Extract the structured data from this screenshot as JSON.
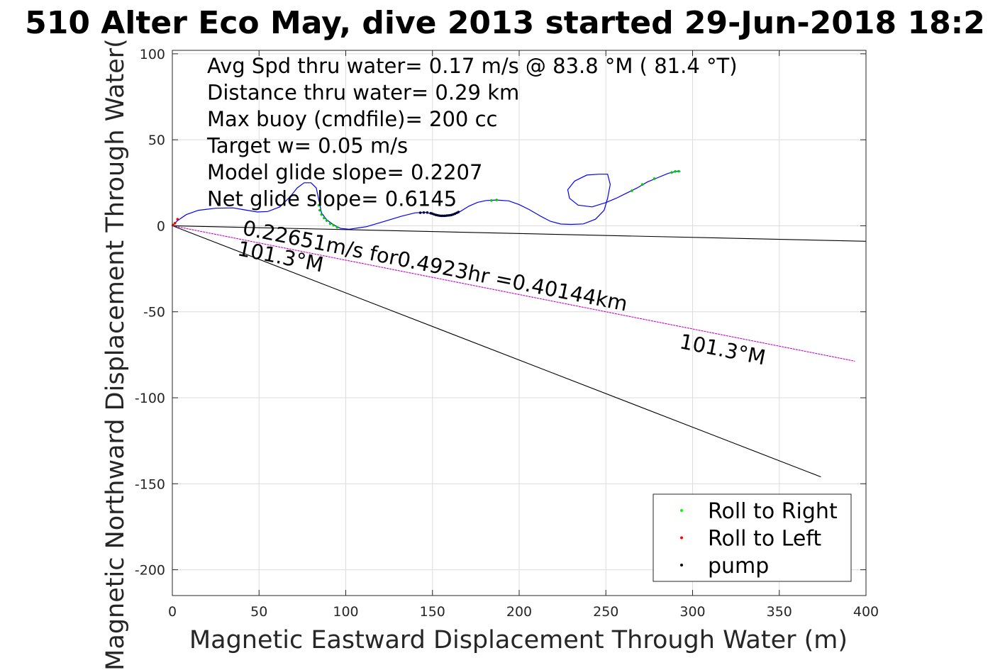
{
  "chart_data": {
    "type": "line",
    "title": "510 Alter Eco May, dive 2013 started 29-Jun-2018 18:2",
    "xlabel": "Magnetic Eastward Displacement Through Water (m)",
    "ylabel": "Magnetic Northward Displacement Through Water(",
    "xlim": [
      0,
      400
    ],
    "ylim": [
      -215,
      102
    ],
    "xticks": [
      0,
      50,
      100,
      150,
      200,
      250,
      300,
      350,
      400
    ],
    "yticks": [
      100,
      50,
      0,
      -50,
      -100,
      -150,
      -200
    ],
    "grid": true,
    "legend_position": "bottom-right",
    "legend": [
      {
        "label": "Roll to Right",
        "color": "#00ff00"
      },
      {
        "label": "Roll to Left",
        "color": "#ff0000"
      },
      {
        "label": "pump",
        "color": "#000000"
      }
    ],
    "info_lines": [
      "Avg Spd thru water=  0.17 m/s @  83.8 °M ( 81.4 °T)",
      "Distance thru water=  0.29 km",
      "Max buoy (cmdfile)= 200 cc",
      "Target w= 0.05 m/s",
      "Model glide slope= 0.2207",
      "Net glide slope= 0.6145"
    ],
    "annotations": [
      {
        "text": "0.22651m/s for0.4923hr =0.40144km",
        "x": 40,
        "y": -5,
        "angle_deg": 11.3
      },
      {
        "text": "101.3°M",
        "x": 37,
        "y": -17,
        "angle_deg": 11.3
      },
      {
        "text": "101.3°M",
        "x": 292,
        "y": -71,
        "angle_deg": 11.3
      }
    ],
    "series": [
      {
        "kind": "track",
        "color": "#0000ff",
        "points": [
          [
            0,
            0
          ],
          [
            3,
            3
          ],
          [
            8,
            6.5
          ],
          [
            15,
            9
          ],
          [
            25,
            10.2
          ],
          [
            35,
            10.4
          ],
          [
            42,
            9.2
          ],
          [
            49,
            8
          ],
          [
            55,
            8.3
          ],
          [
            62,
            11
          ],
          [
            68,
            17
          ],
          [
            72,
            22
          ],
          [
            76,
            25
          ],
          [
            80,
            25
          ],
          [
            83,
            22
          ],
          [
            84.5,
            15
          ],
          [
            86,
            7.5
          ],
          [
            89,
            3.5
          ],
          [
            93,
            0.5
          ],
          [
            97,
            -1.5
          ],
          [
            102,
            -2
          ],
          [
            112,
            -0.5
          ],
          [
            122,
            2.5
          ],
          [
            132,
            5.5
          ],
          [
            140,
            7.5
          ],
          [
            146,
            7.8
          ],
          [
            151,
            6.6
          ],
          [
            156,
            5.8
          ],
          [
            161,
            6.3
          ],
          [
            166,
            8.3
          ],
          [
            171,
            11.4
          ],
          [
            176,
            13.6
          ],
          [
            181,
            14.7
          ],
          [
            187,
            15
          ],
          [
            194,
            14.5
          ],
          [
            200,
            12.3
          ],
          [
            206,
            9.3
          ],
          [
            212,
            5.8
          ],
          [
            218,
            2.6
          ],
          [
            224,
            1
          ],
          [
            230,
            0.8
          ],
          [
            237,
            1.1
          ],
          [
            244,
            3.8
          ],
          [
            249,
            9
          ],
          [
            251,
            16
          ],
          [
            252.5,
            24
          ],
          [
            251,
            30
          ],
          [
            246,
            30
          ],
          [
            239,
            29.5
          ],
          [
            232,
            26
          ],
          [
            228,
            21
          ],
          [
            229,
            16
          ],
          [
            234,
            12
          ],
          [
            242,
            11
          ],
          [
            250,
            13.5
          ],
          [
            256,
            16
          ],
          [
            262,
            19
          ],
          [
            268,
            22
          ],
          [
            274,
            25.5
          ],
          [
            280,
            28
          ],
          [
            286,
            30.5
          ],
          [
            291,
            31.7
          ],
          [
            293,
            31.6
          ]
        ]
      },
      {
        "kind": "vector",
        "color": "#000000",
        "points": [
          [
            0,
            0
          ],
          [
            400,
            -9
          ]
        ]
      },
      {
        "kind": "vector",
        "color": "#000000",
        "points": [
          [
            0,
            0
          ],
          [
            374,
            -146
          ]
        ]
      },
      {
        "kind": "drift",
        "color": "#cc00cc",
        "points": [
          [
            0,
            0
          ],
          [
            393.6,
            -78.7
          ]
        ]
      },
      {
        "kind": "markers",
        "name": "Roll to Right",
        "color": "#00cc00",
        "points": [
          [
            0.5,
            0.5
          ],
          [
            84.5,
            12
          ],
          [
            85,
            9
          ],
          [
            86,
            6.5
          ],
          [
            87.5,
            4.5
          ],
          [
            89,
            3
          ],
          [
            91,
            1.2
          ],
          [
            93,
            0.3
          ],
          [
            95,
            -0.9
          ],
          [
            184,
            14.7
          ],
          [
            187,
            15
          ],
          [
            265,
            20.4
          ],
          [
            271,
            24
          ],
          [
            278,
            27.4
          ],
          [
            288,
            31
          ],
          [
            290,
            31.6
          ],
          [
            292,
            31.7
          ]
        ]
      },
      {
        "kind": "markers",
        "name": "Roll to Left",
        "color": "#ff0000",
        "points": [
          [
            0.3,
            0.3
          ],
          [
            1.5,
            1.5
          ],
          [
            3,
            3.8
          ]
        ]
      },
      {
        "kind": "markers",
        "name": "pump",
        "color": "#000033",
        "points": [
          [
            143,
            7.6
          ],
          [
            145,
            7.7
          ],
          [
            147,
            7.7
          ],
          [
            149,
            7.3
          ],
          [
            150,
            7
          ],
          [
            151,
            6.6
          ],
          [
            152,
            6.3
          ],
          [
            153,
            6.1
          ],
          [
            154,
            5.9
          ],
          [
            155,
            5.8
          ],
          [
            156,
            5.8
          ],
          [
            157,
            5.8
          ],
          [
            158,
            5.9
          ],
          [
            159,
            6
          ],
          [
            160,
            6.1
          ],
          [
            161,
            6.3
          ],
          [
            162,
            6.6
          ],
          [
            163,
            7
          ],
          [
            164,
            7.5
          ],
          [
            165,
            8
          ]
        ]
      }
    ]
  }
}
